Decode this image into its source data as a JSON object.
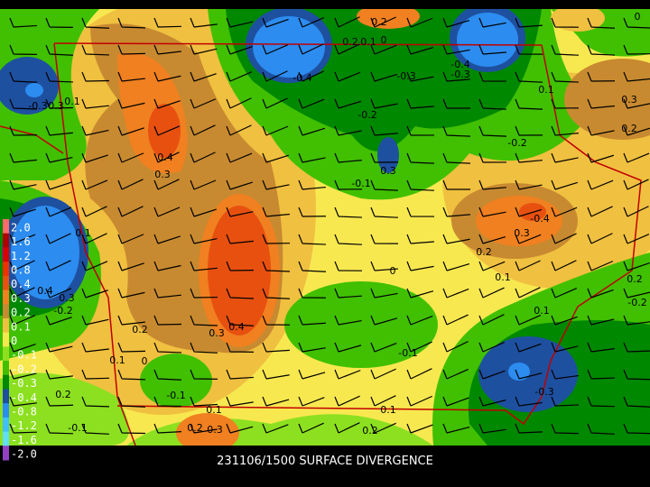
{
  "caption": "231106/1500 SURFACE DIVERGENCE",
  "legend": {
    "levels": [
      {
        "label": "2.0",
        "color": "#ff6a6a"
      },
      {
        "label": "1.6",
        "color": "#b00000"
      },
      {
        "label": "1.2",
        "color": "#d80000"
      },
      {
        "label": "0.8",
        "color": "#f03000"
      },
      {
        "label": "0.4",
        "color": "#e85010"
      },
      {
        "label": "0.3",
        "color": "#f08020"
      },
      {
        "label": "0.2",
        "color": "#c88a30"
      },
      {
        "label": "0.1",
        "color": "#f0c040"
      },
      {
        "label": "0",
        "color": "#f8e850"
      },
      {
        "label": "-0.1",
        "color": "#8ce020"
      },
      {
        "label": "-0.2",
        "color": "#40c000"
      },
      {
        "label": "-0.3",
        "color": "#008800"
      },
      {
        "label": "-0.4",
        "color": "#1e50a0"
      },
      {
        "label": "-0.8",
        "color": "#2c8cf0"
      },
      {
        "label": "-1.2",
        "color": "#40c0ff"
      },
      {
        "label": "-1.6",
        "color": "#60e0f0"
      },
      {
        "label": "-2.0",
        "color": "#9040c0"
      }
    ]
  },
  "contour_labels": [
    "0.2",
    "0.2",
    "0.1",
    "0",
    "-0.4",
    "-0.3",
    "-0.3",
    "-0.4",
    "0.1",
    "0.3",
    "0.2",
    "-0.3",
    "0.3",
    "0.1",
    "-0.2",
    "-0.2",
    "0.4",
    "0.3",
    "0.3",
    "-0.1",
    "-0.4",
    "0.3",
    "0.2",
    "0.1",
    "0.1",
    "0",
    "0.2",
    "-0.2",
    "0.4",
    "0.3",
    "-0.2",
    "0.1",
    "0.2",
    "0.3",
    "0.4",
    "0.1",
    "0",
    "-0.1",
    "-0.3",
    "0.2",
    "-0.1",
    "0.1",
    "0.1",
    "-0.1",
    "0.2",
    "0.3",
    "0.2",
    "0"
  ]
}
